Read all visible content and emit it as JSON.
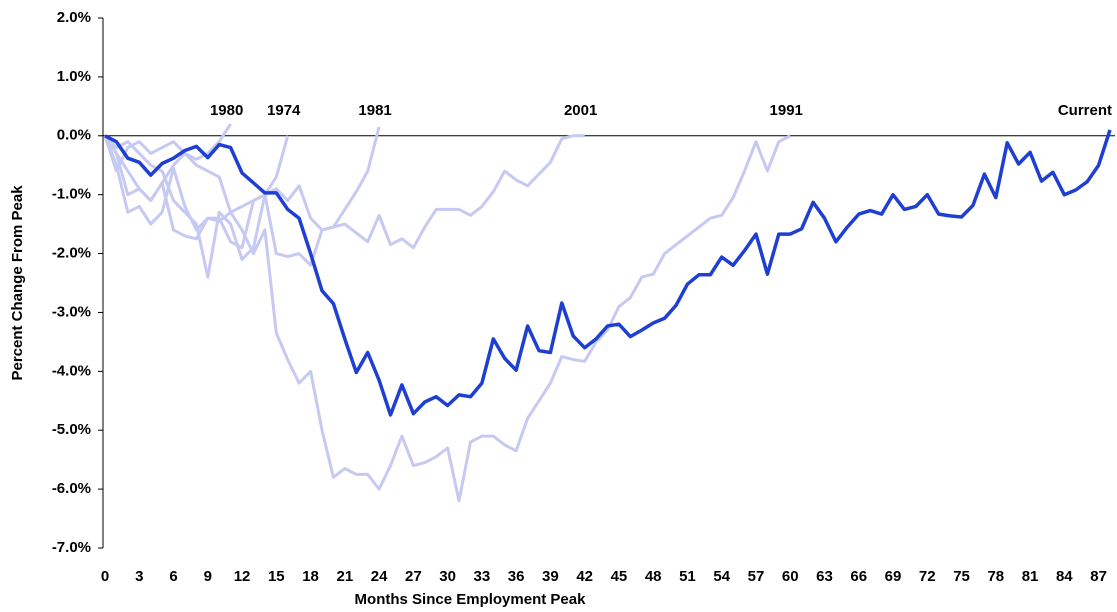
{
  "chart_data": {
    "type": "line",
    "x_label": "Months Since Employment Peak",
    "y_label": "Percent Change From Peak",
    "x": [
      0,
      1,
      2,
      3,
      4,
      5,
      6,
      7,
      8,
      9,
      10,
      11,
      12,
      13,
      14,
      15,
      16,
      17,
      18,
      19,
      20,
      21,
      22,
      23,
      24,
      25,
      26,
      27,
      28,
      29,
      30,
      31,
      32,
      33,
      34,
      35,
      36,
      37,
      38,
      39,
      40,
      41,
      42,
      43,
      44,
      45,
      46,
      47,
      48,
      49,
      50,
      51,
      52,
      53,
      54,
      55,
      56,
      57,
      58,
      59,
      60,
      61,
      62,
      63,
      64,
      65,
      66,
      67,
      68,
      69,
      70,
      71,
      72,
      73,
      74,
      75,
      76,
      77,
      78,
      79,
      80,
      81,
      82,
      83,
      84,
      85,
      86,
      87,
      88
    ],
    "xlim": [
      0,
      88
    ],
    "xticks": [
      0,
      3,
      6,
      9,
      12,
      15,
      18,
      21,
      24,
      27,
      30,
      33,
      36,
      39,
      42,
      45,
      48,
      51,
      54,
      57,
      60,
      63,
      66,
      69,
      72,
      75,
      78,
      81,
      84,
      87
    ],
    "ylim": [
      -7,
      2
    ],
    "yticks": [
      {
        "value": 2,
        "label": "2.0%"
      },
      {
        "value": 1,
        "label": "1.0%"
      },
      {
        "value": 0,
        "label": "0.0%"
      },
      {
        "value": -1,
        "label": "-1.0%"
      },
      {
        "value": -2,
        "label": "-2.0%"
      },
      {
        "value": -3,
        "label": "-3.0%"
      },
      {
        "value": -4,
        "label": "-4.0%"
      },
      {
        "value": -5,
        "label": "-5.0%"
      },
      {
        "value": -6,
        "label": "-6.0%"
      },
      {
        "value": -7,
        "label": "-7.0%"
      }
    ],
    "series": [
      {
        "name": "1991",
        "color": "#c6c9f2",
        "values": [
          0,
          -0.5,
          -1.3,
          -1.2,
          -1.5,
          -1.3,
          -0.55,
          -1.2,
          -1.6,
          -1.4,
          -1.45,
          -1.3,
          -1.6,
          -2.0,
          -1.6,
          -3.35,
          -3.8,
          -4.2,
          -4.0,
          -5.0,
          -5.8,
          -5.65,
          -5.75,
          -5.75,
          -6.0,
          -5.6,
          -5.1,
          -5.6,
          -5.55,
          -5.45,
          -5.3,
          -6.2,
          -5.2,
          -5.1,
          -5.1,
          -5.25,
          -5.35,
          -4.8,
          -4.5,
          -4.2,
          -3.75,
          -3.8,
          -3.83,
          -3.5,
          -3.3,
          -2.9,
          -2.75,
          -2.4,
          -2.35,
          -2.0,
          -1.85,
          -1.7,
          -1.55,
          -1.4,
          -1.35,
          -1.05,
          -0.6,
          -0.1,
          -0.6,
          -0.1,
          0,
          null,
          null,
          null,
          null,
          null,
          null,
          null,
          null,
          null,
          null,
          null,
          null,
          null,
          null,
          null,
          null,
          null,
          null,
          null,
          null,
          null,
          null,
          null,
          null,
          null,
          null,
          null,
          null
        ]
      },
      {
        "name": "2001",
        "color": "#c6c9f2",
        "values": [
          0,
          -0.3,
          -1.0,
          -0.9,
          -1.1,
          -0.8,
          -1.6,
          -1.7,
          -1.75,
          -1.4,
          -1.4,
          -1.8,
          -1.9,
          -1.1,
          -1.0,
          -2.0,
          -2.05,
          -2.0,
          -2.2,
          -1.6,
          -1.55,
          -1.5,
          -1.65,
          -1.8,
          -1.35,
          -1.85,
          -1.75,
          -1.9,
          -1.55,
          -1.25,
          -1.25,
          -1.25,
          -1.35,
          -1.2,
          -0.95,
          -0.6,
          -0.75,
          -0.85,
          -0.65,
          -0.45,
          -0.05,
          0,
          0,
          null,
          null,
          null,
          null,
          null,
          null,
          null,
          null,
          null,
          null,
          null,
          null,
          null,
          null,
          null,
          null,
          null,
          null,
          null,
          null,
          null,
          null,
          null,
          null,
          null,
          null,
          null,
          null,
          null,
          null,
          null,
          null,
          null,
          null,
          null,
          null,
          null,
          null,
          null,
          null,
          null,
          null,
          null,
          null,
          null,
          null
        ]
      },
      {
        "name": "1981",
        "color": "#c6c9f2",
        "values": [
          0,
          -0.6,
          -0.2,
          -0.1,
          -0.3,
          -0.2,
          -0.1,
          -0.3,
          -0.5,
          -0.6,
          -0.7,
          -1.3,
          -1.2,
          -1.1,
          -1.0,
          -0.9,
          -1.1,
          -0.85,
          -1.4,
          -1.6,
          -1.55,
          -1.25,
          -0.95,
          -0.6,
          0.15,
          null,
          null,
          null,
          null,
          null,
          null,
          null,
          null,
          null,
          null,
          null,
          null,
          null,
          null,
          null,
          null,
          null,
          null,
          null,
          null,
          null,
          null,
          null,
          null,
          null,
          null,
          null,
          null,
          null,
          null,
          null,
          null,
          null,
          null,
          null,
          null,
          null,
          null,
          null,
          null,
          null,
          null,
          null,
          null,
          null,
          null,
          null,
          null,
          null,
          null,
          null,
          null,
          null,
          null,
          null,
          null,
          null,
          null,
          null,
          null,
          null,
          null,
          null,
          null
        ]
      },
      {
        "name": "1974",
        "color": "#c6c9f2",
        "values": [
          0,
          -0.2,
          -0.1,
          -0.3,
          -0.5,
          -0.6,
          -1.1,
          -1.3,
          -1.5,
          -2.4,
          -1.3,
          -1.5,
          -2.1,
          -1.9,
          -1.0,
          -0.7,
          0,
          null,
          null,
          null,
          null,
          null,
          null,
          null,
          null,
          null,
          null,
          null,
          null,
          null,
          null,
          null,
          null,
          null,
          null,
          null,
          null,
          null,
          null,
          null,
          null,
          null,
          null,
          null,
          null,
          null,
          null,
          null,
          null,
          null,
          null,
          null,
          null,
          null,
          null,
          null,
          null,
          null,
          null,
          null,
          null,
          null,
          null,
          null,
          null,
          null,
          null,
          null,
          null,
          null,
          null,
          null,
          null,
          null,
          null,
          null,
          null,
          null,
          null,
          null,
          null,
          null,
          null,
          null,
          null,
          null,
          null,
          null,
          null
        ]
      },
      {
        "name": "1980",
        "color": "#c6c9f2",
        "values": [
          0,
          -0.3,
          -0.6,
          -0.9,
          -1.1,
          -0.8,
          -0.5,
          -0.3,
          -0.4,
          -0.3,
          -0.1,
          0.2,
          null,
          null,
          null,
          null,
          null,
          null,
          null,
          null,
          null,
          null,
          null,
          null,
          null,
          null,
          null,
          null,
          null,
          null,
          null,
          null,
          null,
          null,
          null,
          null,
          null,
          null,
          null,
          null,
          null,
          null,
          null,
          null,
          null,
          null,
          null,
          null,
          null,
          null,
          null,
          null,
          null,
          null,
          null,
          null,
          null,
          null,
          null,
          null,
          null,
          null,
          null,
          null,
          null,
          null,
          null,
          null,
          null,
          null,
          null,
          null,
          null,
          null,
          null,
          null,
          null,
          null,
          null,
          null,
          null,
          null,
          null,
          null,
          null,
          null,
          null,
          null,
          null
        ]
      },
      {
        "name": "Current",
        "color": "#1f3fd2",
        "values": [
          0,
          -0.1,
          -0.38,
          -0.45,
          -0.67,
          -0.47,
          -0.38,
          -0.25,
          -0.18,
          -0.37,
          -0.15,
          -0.2,
          -0.63,
          -0.8,
          -0.97,
          -0.97,
          -1.25,
          -1.4,
          -2.0,
          -2.63,
          -2.85,
          -3.45,
          -4.02,
          -3.68,
          -4.15,
          -4.74,
          -4.23,
          -4.72,
          -4.52,
          -4.43,
          -4.58,
          -4.4,
          -4.43,
          -4.2,
          -3.45,
          -3.78,
          -3.98,
          -3.23,
          -3.65,
          -3.68,
          -2.84,
          -3.4,
          -3.6,
          -3.45,
          -3.23,
          -3.2,
          -3.41,
          -3.3,
          -3.18,
          -3.1,
          -2.88,
          -2.52,
          -2.36,
          -2.36,
          -2.06,
          -2.2,
          -1.95,
          -1.67,
          -2.35,
          -1.67,
          -1.67,
          -1.58,
          -1.13,
          -1.4,
          -1.8,
          -1.55,
          -1.33,
          -1.27,
          -1.33,
          -1.0,
          -1.25,
          -1.2,
          -1.0,
          -1.33,
          -1.36,
          -1.38,
          -1.18,
          -0.65,
          -1.05,
          -0.12,
          -0.48,
          -0.28,
          -0.77,
          -0.62,
          -1.0,
          -0.92,
          -0.78,
          -0.5,
          0.1
        ]
      }
    ]
  }
}
